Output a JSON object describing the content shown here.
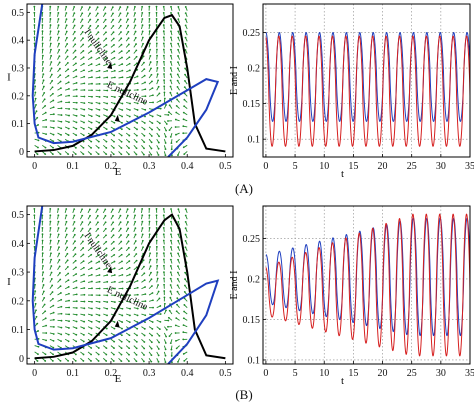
{
  "figure": {
    "panel_labels": [
      "(A)",
      "(B)"
    ]
  },
  "chart_data": [
    {
      "type": "line",
      "panel": "A-left",
      "xlabel": "E",
      "ylabel": "I",
      "xlim": [
        -0.02,
        0.52
      ],
      "ylim": [
        -0.02,
        0.53
      ],
      "xticks": [
        0,
        0.1,
        0.2,
        0.3,
        0.4,
        0.5
      ],
      "xtick_labels": [
        "0",
        "0.1",
        "0.2",
        "0.3",
        "0.4",
        "0.5"
      ],
      "yticks": [
        0,
        0.1,
        0.2,
        0.3,
        0.4,
        0.5
      ],
      "ytick_labels": [
        "0",
        "0.1",
        "0.2",
        "0.3",
        "0.4",
        "0.5"
      ],
      "background": "vector field",
      "annotations": [
        "I nullcline",
        "E nullcline"
      ],
      "series": [
        {
          "color": "#000000",
          "x": [
            0.0,
            0.05,
            0.1,
            0.15,
            0.2,
            0.25,
            0.3,
            0.34,
            0.36,
            0.38,
            0.4,
            0.42,
            0.45,
            0.5
          ],
          "y": [
            0.0,
            0.005,
            0.02,
            0.06,
            0.13,
            0.25,
            0.4,
            0.48,
            0.49,
            0.45,
            0.3,
            0.1,
            0.01,
            0.0
          ]
        },
        {
          "color": "#1f3fbf",
          "x": [
            0.02,
            0.0,
            -0.005,
            0.0,
            0.01,
            0.05,
            0.1,
            0.2,
            0.3,
            0.4,
            0.45,
            0.48,
            0.45,
            0.4,
            0.35
          ],
          "y": [
            0.53,
            0.35,
            0.2,
            0.1,
            0.05,
            0.03,
            0.035,
            0.07,
            0.14,
            0.22,
            0.26,
            0.25,
            0.15,
            0.05,
            -0.02
          ]
        }
      ]
    },
    {
      "type": "line",
      "panel": "A-right",
      "xlabel": "t",
      "ylabel": "E and I",
      "xlim": [
        -0.5,
        35
      ],
      "ylim": [
        0.075,
        0.29
      ],
      "xticks": [
        0,
        5,
        10,
        15,
        20,
        25,
        30,
        35
      ],
      "xtick_labels": [
        "0",
        "5",
        "10",
        "15",
        "20",
        "25",
        "30",
        "35"
      ],
      "yticks": [
        0.1,
        0.15,
        0.2,
        0.25
      ],
      "ytick_labels": [
        "0.1",
        "0.15",
        "0.2",
        "0.25"
      ],
      "grid": true,
      "oscillation": {
        "period": 2.3,
        "t_start": 0,
        "t_end": 35
      },
      "series": [
        {
          "color": "#1f3fbf",
          "min": 0.125,
          "max": 0.25
        },
        {
          "color": "#d62020",
          "min": 0.09,
          "max": 0.245
        }
      ]
    },
    {
      "type": "line",
      "panel": "B-left",
      "xlabel": "E",
      "ylabel": "I",
      "xlim": [
        -0.02,
        0.52
      ],
      "ylim": [
        -0.02,
        0.53
      ],
      "xticks": [
        0,
        0.1,
        0.2,
        0.3,
        0.4,
        0.5
      ],
      "xtick_labels": [
        "0",
        "0.1",
        "0.2",
        "0.3",
        "0.4",
        "0.5"
      ],
      "yticks": [
        0,
        0.1,
        0.2,
        0.3,
        0.4,
        0.5
      ],
      "ytick_labels": [
        "0",
        "0.1",
        "0.2",
        "0.3",
        "0.4",
        "0.5"
      ],
      "background": "vector field",
      "annotations": [
        "I nullcline",
        "E nullcline"
      ],
      "series": [
        {
          "color": "#000000",
          "x": [
            0.0,
            0.05,
            0.1,
            0.15,
            0.2,
            0.25,
            0.3,
            0.34,
            0.36,
            0.38,
            0.4,
            0.42,
            0.45,
            0.5
          ],
          "y": [
            0.0,
            0.005,
            0.02,
            0.06,
            0.13,
            0.25,
            0.4,
            0.48,
            0.5,
            0.45,
            0.3,
            0.1,
            0.01,
            0.0
          ]
        },
        {
          "color": "#1f3fbf",
          "x": [
            0.02,
            0.0,
            -0.005,
            0.0,
            0.01,
            0.05,
            0.1,
            0.2,
            0.3,
            0.4,
            0.45,
            0.48,
            0.45,
            0.4,
            0.35
          ],
          "y": [
            0.53,
            0.35,
            0.2,
            0.1,
            0.05,
            0.03,
            0.035,
            0.07,
            0.14,
            0.22,
            0.26,
            0.27,
            0.15,
            0.05,
            -0.02
          ]
        }
      ]
    },
    {
      "type": "line",
      "panel": "B-right",
      "xlabel": "t",
      "ylabel": "E and I",
      "xlim": [
        -0.5,
        35
      ],
      "ylim": [
        0.095,
        0.29
      ],
      "xticks": [
        0,
        5,
        10,
        15,
        20,
        25,
        30,
        35
      ],
      "xtick_labels": [
        "0",
        "5",
        "10",
        "15",
        "20",
        "25",
        "30",
        "35"
      ],
      "yticks": [
        0.1,
        0.15,
        0.2,
        0.25
      ],
      "ytick_labels": [
        "0.1",
        "0.15",
        "0.2",
        "0.25"
      ],
      "grid": true,
      "oscillation": {
        "period": 2.3,
        "t_start": 0,
        "t_end": 35
      },
      "series": [
        {
          "color": "#1f3fbf",
          "min_start": 0.17,
          "min_end": 0.13,
          "max_start": 0.23,
          "max_end": 0.275
        },
        {
          "color": "#d62020",
          "min_start": 0.155,
          "min_end": 0.105,
          "max_start": 0.215,
          "max_end": 0.28
        }
      ]
    }
  ]
}
